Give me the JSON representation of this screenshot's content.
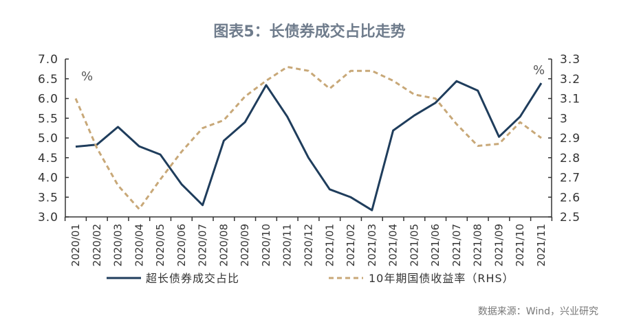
{
  "title": "图表5：长债券成交占比走势",
  "source": "数据来源：Wind，兴业研究",
  "colors": {
    "series1": "#1f3d5c",
    "series2": "#c8a878",
    "axis": "#333333",
    "title": "#6f7c8c"
  },
  "chart_data": {
    "type": "line",
    "title": "图表5：长债券成交占比走势",
    "grid": false,
    "legend_placement": "bottom",
    "x": [
      "2020/01",
      "2020/02",
      "2020/03",
      "2020/04",
      "2020/05",
      "2020/06",
      "2020/07",
      "2020/08",
      "2020/09",
      "2020/10",
      "2020/11",
      "2020/12",
      "2021/01",
      "2021/02",
      "2021/03",
      "2021/04",
      "2021/05",
      "2021/06",
      "2021/07",
      "2021/08",
      "2021/09",
      "2021/10",
      "2021/11"
    ],
    "left_axis": {
      "unit": "%",
      "ylim": [
        3.0,
        7.0
      ],
      "ticks": [
        "3.0",
        "3.5",
        "4.0",
        "4.5",
        "5.0",
        "5.5",
        "6.0",
        "6.5",
        "7.0"
      ]
    },
    "right_axis": {
      "unit": "%",
      "ylim": [
        2.5,
        3.3
      ],
      "ticks": [
        "2.5",
        "2.6",
        "2.7",
        "2.8",
        "2.9",
        "3",
        "3.1",
        "3.2",
        "3.3"
      ]
    },
    "series": [
      {
        "name": "超长债券成交占比",
        "axis": "left",
        "style": "solid",
        "values": [
          4.78,
          4.83,
          5.28,
          4.79,
          4.58,
          3.83,
          3.3,
          4.93,
          5.4,
          6.34,
          5.54,
          4.5,
          3.7,
          3.5,
          3.17,
          5.19,
          5.57,
          5.89,
          6.44,
          6.2,
          5.03,
          5.54,
          6.39
        ]
      },
      {
        "name": "10年期国债收益率（RHS）",
        "axis": "right",
        "style": "dashed",
        "values": [
          3.1,
          2.85,
          2.66,
          2.54,
          2.69,
          2.83,
          2.95,
          2.99,
          3.11,
          3.19,
          3.26,
          3.24,
          3.15,
          3.24,
          3.24,
          3.19,
          3.12,
          3.1,
          2.97,
          2.86,
          2.87,
          2.98,
          2.9
        ]
      }
    ]
  }
}
